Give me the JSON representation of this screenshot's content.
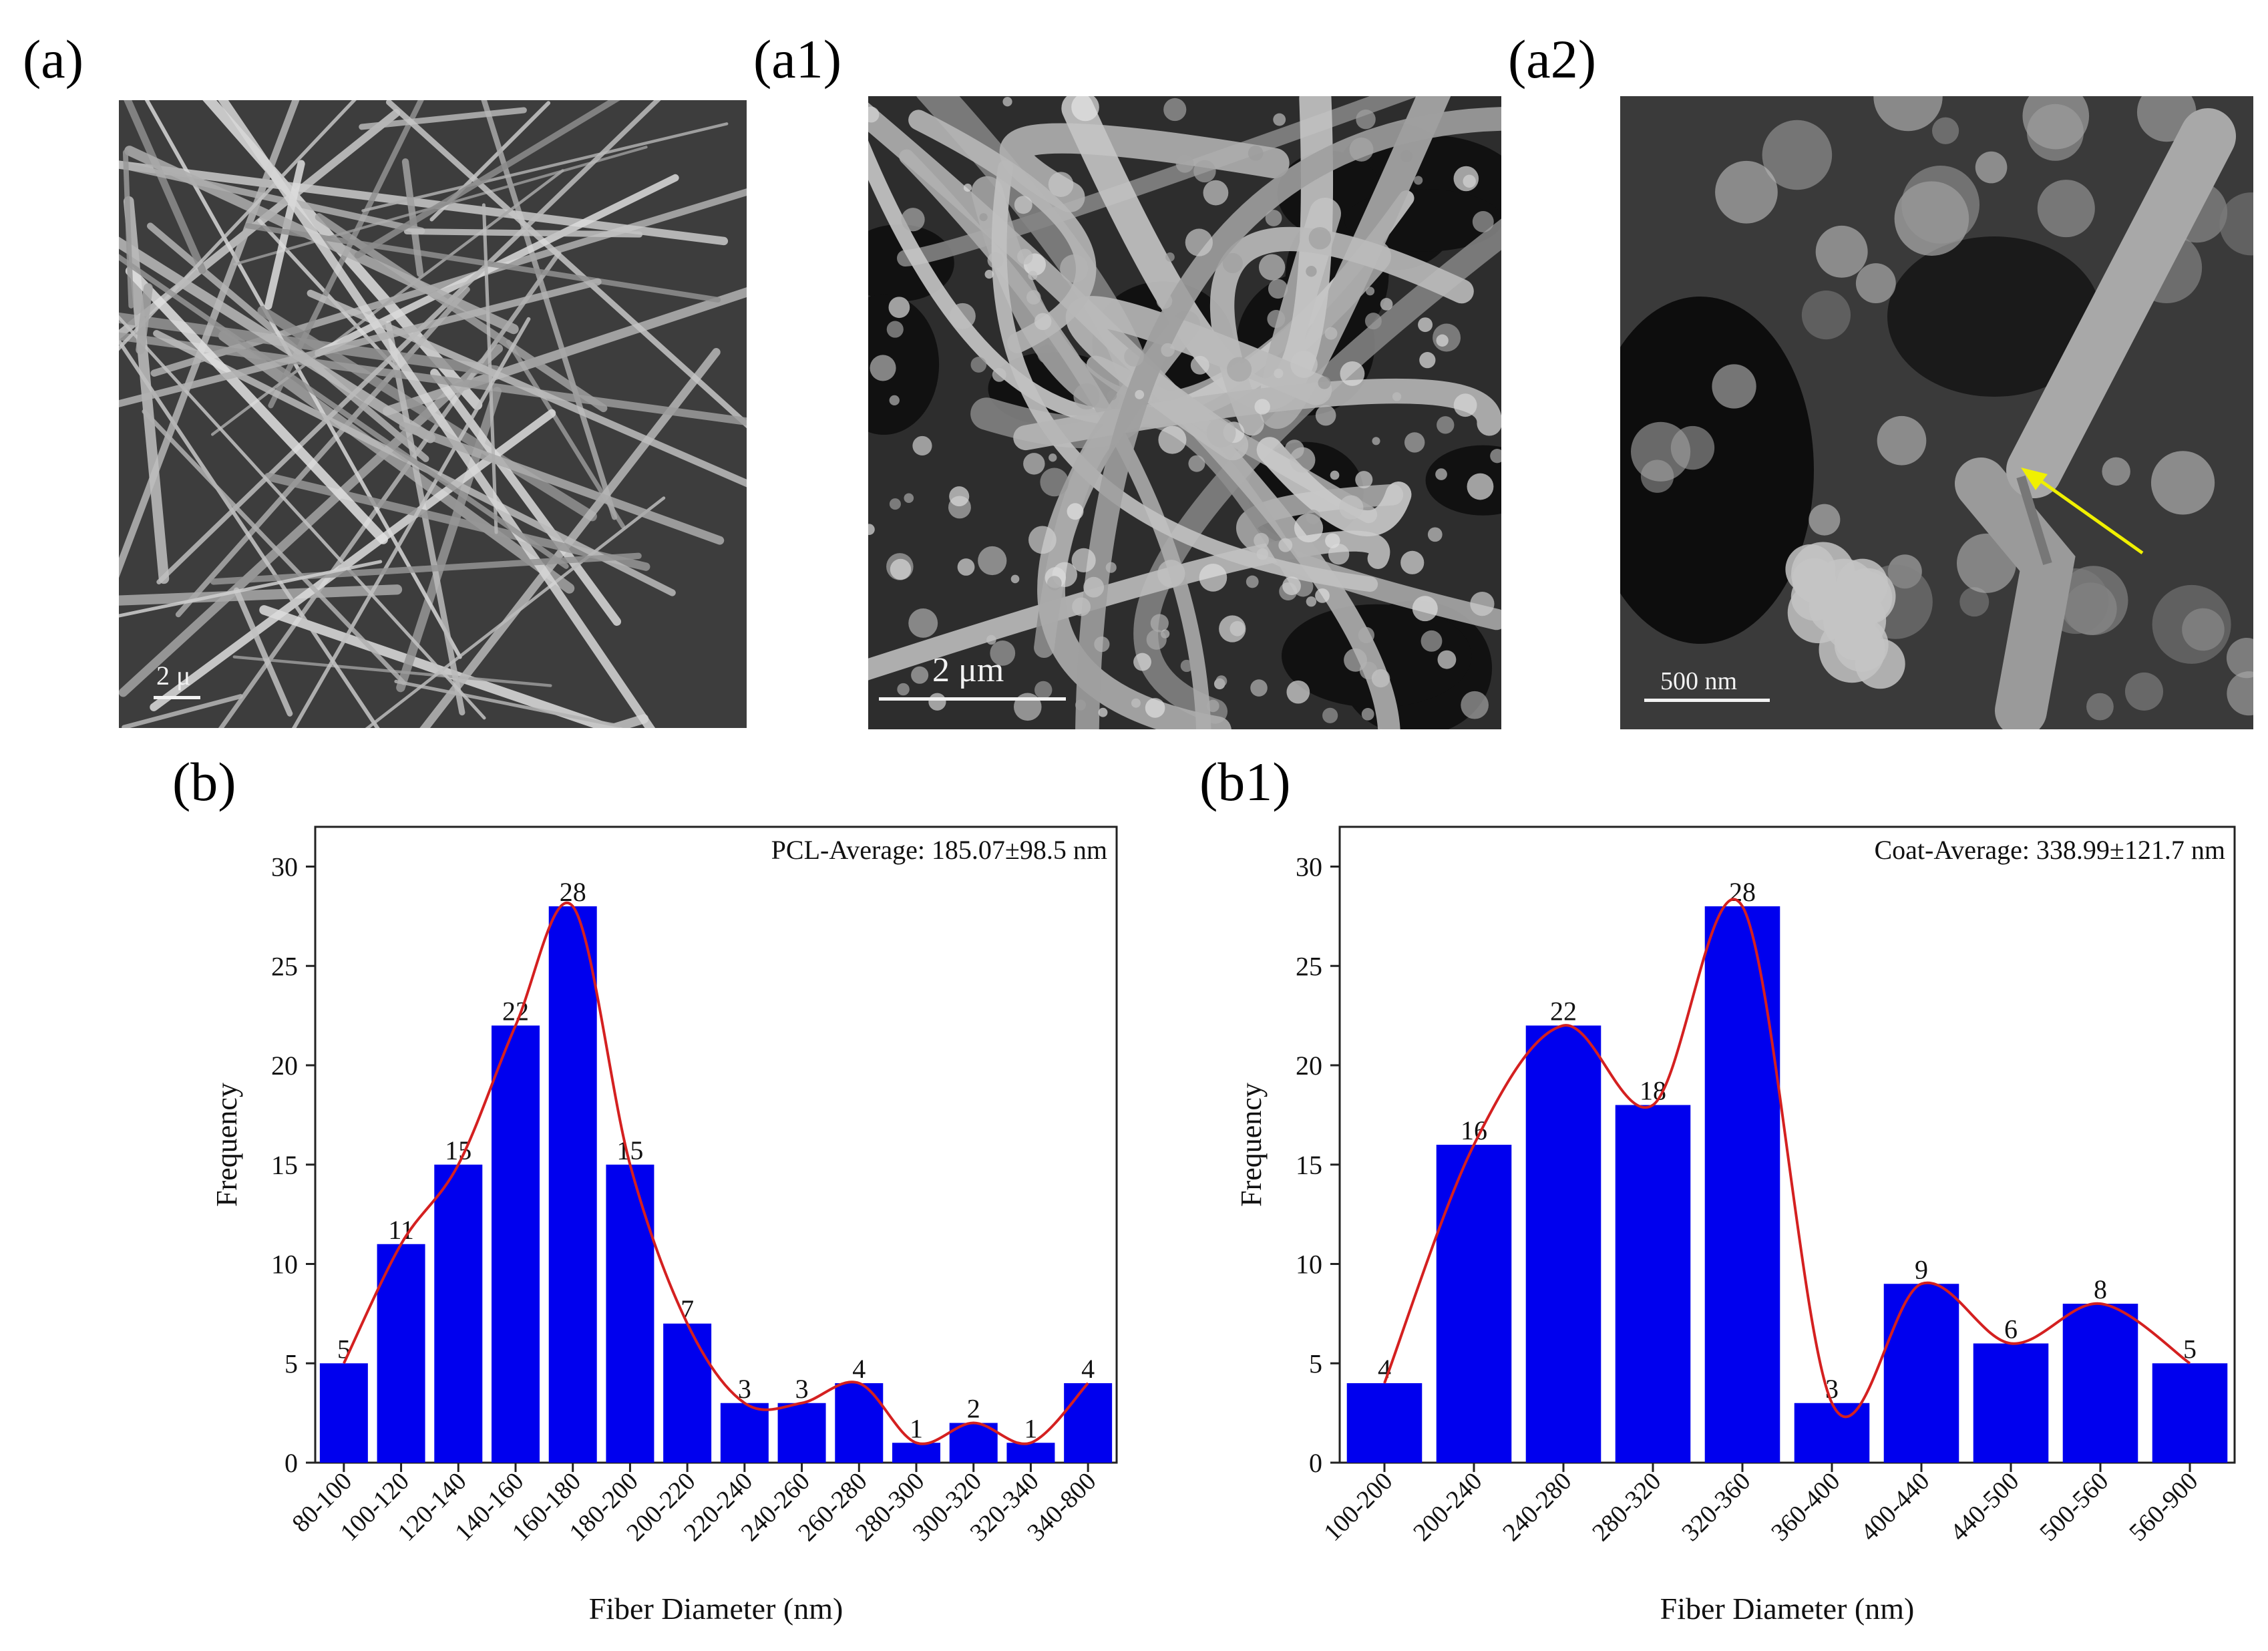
{
  "panels": {
    "a": {
      "label": "(a)",
      "scale_text": "2 μ"
    },
    "a1": {
      "label": "(a1)",
      "scale_text": "2 μm"
    },
    "a2": {
      "label": "(a2)",
      "scale_text": "500 nm"
    },
    "b": {
      "label": "(b)"
    },
    "b1": {
      "label": "(b1)"
    }
  },
  "colors": {
    "bar": "#0000ee",
    "curve": "#d42020",
    "arrow": "#f0f000",
    "sem_bg": "#3a3a3a"
  },
  "chart_data": [
    {
      "type": "bar",
      "annotation": "PCL-Average: 185.07±98.5 nm",
      "xlabel": "Fiber Diameter (nm)",
      "ylabel": "Frequency",
      "categories": [
        "80-100",
        "100-120",
        "120-140",
        "140-160",
        "160-180",
        "180-200",
        "200-220",
        "220-240",
        "240-260",
        "260-280",
        "280-300",
        "300-320",
        "320-340",
        "340-800"
      ],
      "values": [
        5,
        11,
        15,
        22,
        28,
        15,
        7,
        3,
        3,
        4,
        1,
        2,
        1,
        4
      ],
      "ylim": [
        0,
        32
      ],
      "yticks": [
        0,
        5,
        10,
        15,
        20,
        25,
        30
      ],
      "fit_curve": true
    },
    {
      "type": "bar",
      "annotation": "Coat-Average: 338.99±121.7 nm",
      "xlabel": "Fiber Diameter (nm)",
      "ylabel": "Frequency",
      "categories": [
        "100-200",
        "200-240",
        "240-280",
        "280-320",
        "320-360",
        "360-400",
        "400-440",
        "440-500",
        "500-560",
        "560-900"
      ],
      "values": [
        4,
        16,
        22,
        18,
        28,
        3,
        9,
        6,
        8,
        5
      ],
      "ylim": [
        0,
        32
      ],
      "yticks": [
        0,
        5,
        10,
        15,
        20,
        25,
        30
      ],
      "fit_curve": true
    }
  ]
}
